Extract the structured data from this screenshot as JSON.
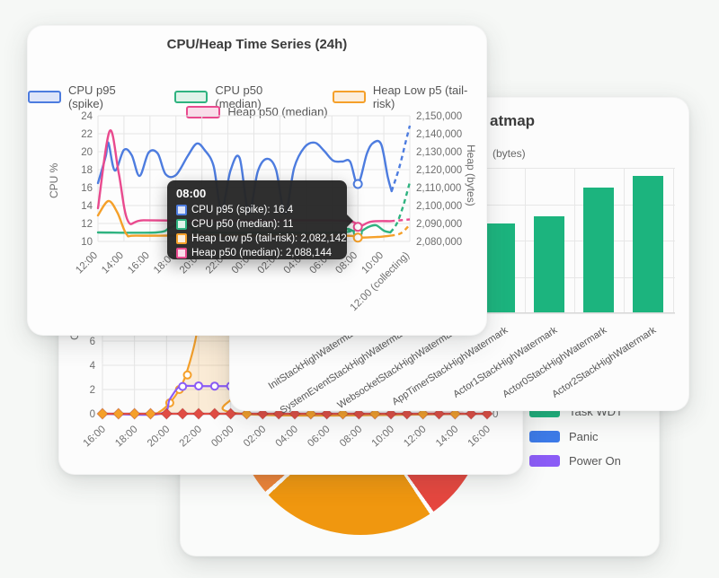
{
  "card_timeseries": {
    "title": "CPU/Heap Time Series (24h)",
    "legend": [
      {
        "label": "CPU p95 (spike)",
        "color": "#4D7CDF",
        "fill": "#DEE5F9"
      },
      {
        "label": "CPU p50 (median)",
        "color": "#2FB380",
        "fill": "#DFF3E9"
      },
      {
        "label": "Heap Low p5 (tail-risk)",
        "color": "#F5A02A",
        "fill": "#FCEEDC"
      },
      {
        "label": "Heap p50 (median)",
        "color": "#E94A8E",
        "fill": "#FADDEA"
      }
    ],
    "axis_left": {
      "label": "CPU %",
      "ticks": [
        "24",
        "22",
        "20",
        "18",
        "16",
        "14",
        "12",
        "10"
      ]
    },
    "axis_right": {
      "label": "Heap (bytes)",
      "ticks": [
        "2,150,000",
        "2,140,000",
        "2,130,000",
        "2,120,000",
        "2,110,000",
        "2,100,000",
        "2,090,000",
        "2,080,000"
      ]
    },
    "x_labels": [
      "12:00",
      "14:00",
      "16:00",
      "18:00",
      "20:00",
      "22:00",
      "00:00",
      "02:00",
      "04:00",
      "06:00",
      "08:00",
      "10:00",
      "12:00 (collecting)"
    ],
    "tooltip": {
      "time": "08:00",
      "rows": [
        {
          "text": "CPU p95 (spike): 16.4",
          "color": "#4D7CDF",
          "fill": "#DEE5F9"
        },
        {
          "text": "CPU p50 (median): 11",
          "color": "#2FB380",
          "fill": "#DFF3E9"
        },
        {
          "text": "Heap Low p5 (tail-risk): 2,082,142",
          "color": "#F5A02A",
          "fill": "#FCEEDC"
        },
        {
          "text": "Heap p50 (median): 2,088,144",
          "color": "#E94A8E",
          "fill": "#FADDEA"
        }
      ]
    },
    "chart_data": {
      "type": "line",
      "x_unit": "hours from 12:00",
      "ylim_left": [
        10,
        24
      ],
      "ylim_right": [
        2080000,
        2150000
      ],
      "hover_x": 20,
      "series": [
        {
          "name": "CPU p95 (spike)",
          "axis": "left",
          "color": "#4D7CDF",
          "marker_value": 16.4,
          "solid": [
            [
              0,
              16.5
            ],
            [
              0.6,
              19.5
            ],
            [
              0.8,
              21
            ],
            [
              1.3,
              17.9
            ],
            [
              2,
              20.2
            ],
            [
              2.6,
              19.6
            ],
            [
              3.2,
              17.3
            ],
            [
              3.9,
              19.9
            ],
            [
              4.6,
              19.8
            ],
            [
              5.2,
              17.5
            ],
            [
              6,
              17.4
            ],
            [
              6.9,
              19.5
            ],
            [
              7.6,
              20.9
            ],
            [
              8.2,
              20.2
            ],
            [
              8.9,
              18.4
            ],
            [
              9.5,
              13.5
            ],
            [
              10.2,
              17.9
            ],
            [
              10.9,
              19.3
            ],
            [
              11.6,
              13.2
            ],
            [
              12.3,
              17.8
            ],
            [
              13,
              19.2
            ],
            [
              13.7,
              18.0
            ],
            [
              14.4,
              13.1
            ],
            [
              15.1,
              18.2
            ],
            [
              15.9,
              20.5
            ],
            [
              16.7,
              21.0
            ],
            [
              17.4,
              20.1
            ],
            [
              18.1,
              19.0
            ],
            [
              18.8,
              18.9
            ],
            [
              19.4,
              18.9
            ],
            [
              20,
              16.4
            ],
            [
              20.7,
              19.8
            ],
            [
              21.2,
              21.0
            ],
            [
              21.8,
              20.8
            ],
            [
              22.3,
              17.2
            ],
            [
              22.6,
              15.6
            ]
          ],
          "dashed": [
            [
              22.6,
              15.6
            ],
            [
              23.2,
              18.3
            ],
            [
              23.7,
              21.2
            ],
            [
              24,
              22.9
            ]
          ]
        },
        {
          "name": "CPU p50 (median)",
          "axis": "left",
          "color": "#2FB380",
          "marker_value": 11,
          "solid": [
            [
              0,
              11
            ],
            [
              4.5,
              11
            ],
            [
              5.5,
              11.5
            ],
            [
              6.3,
              12
            ],
            [
              7,
              11.8
            ],
            [
              7.6,
              11.2
            ],
            [
              8.2,
              11
            ],
            [
              18.5,
              11
            ],
            [
              19.2,
              11.4
            ],
            [
              20,
              11
            ],
            [
              20.8,
              11.6
            ],
            [
              21.4,
              11.8
            ],
            [
              22,
              11.2
            ],
            [
              22.5,
              11.0
            ]
          ],
          "dashed": [
            [
              22.5,
              11
            ],
            [
              23,
              12
            ],
            [
              23.5,
              14
            ],
            [
              24,
              16.6
            ]
          ]
        },
        {
          "name": "Heap Low p5 (tail-risk)",
          "axis": "right",
          "color": "#F5A02A",
          "marker_value": 2082142,
          "solid": [
            [
              0,
              2094500
            ],
            [
              0.8,
              2102500
            ],
            [
              1.5,
              2096000
            ],
            [
              2.2,
              2084000
            ],
            [
              3,
              2083200
            ],
            [
              8,
              2083400
            ],
            [
              12,
              2083300
            ],
            [
              19,
              2083200
            ],
            [
              20,
              2082142
            ],
            [
              21.5,
              2082500
            ],
            [
              22.5,
              2083200
            ]
          ],
          "dashed": [
            [
              22.5,
              2083200
            ],
            [
              23.3,
              2084500
            ],
            [
              24,
              2089300
            ]
          ]
        },
        {
          "name": "Heap p50 (median)",
          "axis": "right",
          "color": "#E94A8E",
          "marker_value": 2088144,
          "solid": [
            [
              0,
              2098500
            ],
            [
              0.9,
              2141500
            ],
            [
              1.6,
              2118000
            ],
            [
              2.3,
              2091500
            ],
            [
              3.5,
              2091800
            ],
            [
              8,
              2091500
            ],
            [
              12,
              2091600
            ],
            [
              19,
              2091500
            ],
            [
              20,
              2088144
            ],
            [
              21,
              2091000
            ],
            [
              22.5,
              2091300
            ]
          ],
          "dashed": [
            [
              22.5,
              2091300
            ],
            [
              23.3,
              2091800
            ],
            [
              24,
              2092300
            ]
          ]
        }
      ]
    }
  },
  "card_heatmap": {
    "title_visible": "atmap",
    "subtitle_visible": "(bytes)",
    "bar_color": "#1CB47E",
    "chart_data": {
      "type": "bar",
      "categories": [
        "InitStackHighWatermark",
        "SystemEventStackHighWatermark",
        "WebsocketStackHighWatermark",
        "AppTimerStackHighWatermark",
        "Actor1StackHighWatermark",
        "Actor0StackHighWatermark",
        "Actor2StackHighWatermark"
      ],
      "relative_heights": [
        0.37,
        0.43,
        0.5,
        0.61,
        0.66,
        0.86,
        0.94
      ],
      "note": "y-axis hidden behind front card; heights estimated from pixels"
    }
  },
  "card_events": {
    "ylabel": "Count",
    "y_ticks": [
      "6",
      "4",
      "2",
      "0"
    ],
    "right_zero": "0",
    "x_labels": [
      "16:00",
      "18:00",
      "20:00",
      "22:00",
      "00:00",
      "02:00",
      "04:00",
      "06:00",
      "08:00",
      "10:00",
      "12:00",
      "14:00",
      "16:00"
    ],
    "chart_data": {
      "type": "line",
      "x_unit": "hours from 16:00",
      "ylim": [
        0,
        8
      ],
      "series": [
        {
          "name": "orange-events",
          "color": "#F5A02A",
          "points": [
            [
              0,
              0
            ],
            [
              3,
              0
            ],
            [
              3.6,
              0.2
            ],
            [
              4.2,
              0.9
            ],
            [
              4.8,
              2.0
            ],
            [
              5.2,
              3.2
            ],
            [
              5.7,
              5.5
            ],
            [
              6.1,
              8
            ],
            [
              6.5,
              9.6
            ],
            [
              7,
              10
            ],
            [
              7.5,
              9.7
            ],
            [
              8,
              6.5
            ],
            [
              8.4,
              2
            ],
            [
              8.7,
              0
            ],
            [
              24,
              0
            ]
          ],
          "area_fill": "rgba(245,160,42,0.18)",
          "circle_markers_t": [
            4.2,
            4.8,
            5.3,
            6
          ]
        },
        {
          "name": "purple-events",
          "color": "#8B5CF6",
          "points": [
            [
              0,
              0
            ],
            [
              3.6,
              0
            ],
            [
              4.2,
              1.2
            ],
            [
              4.8,
              2.25
            ],
            [
              5.5,
              2.3
            ],
            [
              8,
              2.28
            ],
            [
              24,
              2.3
            ]
          ],
          "circle_markers_t": [
            5,
            6,
            7,
            8
          ]
        },
        {
          "name": "blue-events",
          "color": "#4178E8",
          "points": [
            [
              0,
              0
            ],
            [
              24,
              0
            ]
          ]
        },
        {
          "name": "red-events",
          "color": "#E14D44",
          "points": [
            [
              0,
              0
            ],
            [
              24,
              0
            ]
          ]
        },
        {
          "name": "red-area-bump",
          "color": "none",
          "points": [
            [
              19.8,
              0
            ],
            [
              20.3,
              0.9
            ],
            [
              21,
              1.0
            ],
            [
              22,
              0.9
            ],
            [
              22.6,
              0
            ]
          ],
          "area_fill": "rgba(225,77,68,0.15)"
        }
      ],
      "diamond_markers": {
        "hours": [
          0,
          1,
          2,
          3,
          4,
          5,
          6,
          7,
          8,
          9,
          10,
          11,
          12,
          13,
          14,
          15,
          16,
          17,
          18,
          19,
          20,
          21,
          22,
          23,
          24
        ],
        "colors": [
          "#F5A02A",
          "#F5A02A",
          "#F5A02A",
          "#F5A02A",
          "#E14D44",
          "#E14D44",
          "#E14D44",
          "#E14D44",
          "#E14D44",
          "#F5A02A",
          "#E14D44",
          "#E14D44",
          "#E14D44",
          "#F5A02A",
          "#E14D44",
          "#F5A02A",
          "#E14D44",
          "#F5A02A",
          "#E14D44",
          "#E14D44",
          "#F5A02A",
          "#E14D44",
          "#F5A02A",
          "#E14D44",
          "#E14D44"
        ]
      }
    }
  },
  "card_pie": {
    "legend": [
      {
        "label": "Task WDT",
        "color": "#1CB47E"
      },
      {
        "label": "Panic",
        "color": "#3D7BE8"
      },
      {
        "label": "Power On",
        "color": "#8B5CF6"
      }
    ],
    "chart_data": {
      "type": "pie",
      "note": "only bottom arc visible; angles in degrees clockwise from top",
      "segments": [
        {
          "name": "hidden-top-1",
          "color": "#1CB47E",
          "from": 0,
          "to": 60
        },
        {
          "name": "hidden-top-2",
          "color": "#3D7BE8",
          "from": 60,
          "to": 90
        },
        {
          "name": "hidden-top-3",
          "color": "#8B5CF6",
          "from": 90,
          "to": 116.5
        },
        {
          "name": "red-right",
          "color": "#E6473F",
          "from": 118.5,
          "to": 144.5
        },
        {
          "name": "orange-main",
          "color": "#F0970F",
          "from": 146.5,
          "to": 227
        },
        {
          "name": "orange-light",
          "color": "#EE8438",
          "from": 229,
          "to": 241.5
        },
        {
          "name": "red-left",
          "color": "#E6473F",
          "from": 243.5,
          "to": 360
        }
      ]
    }
  }
}
